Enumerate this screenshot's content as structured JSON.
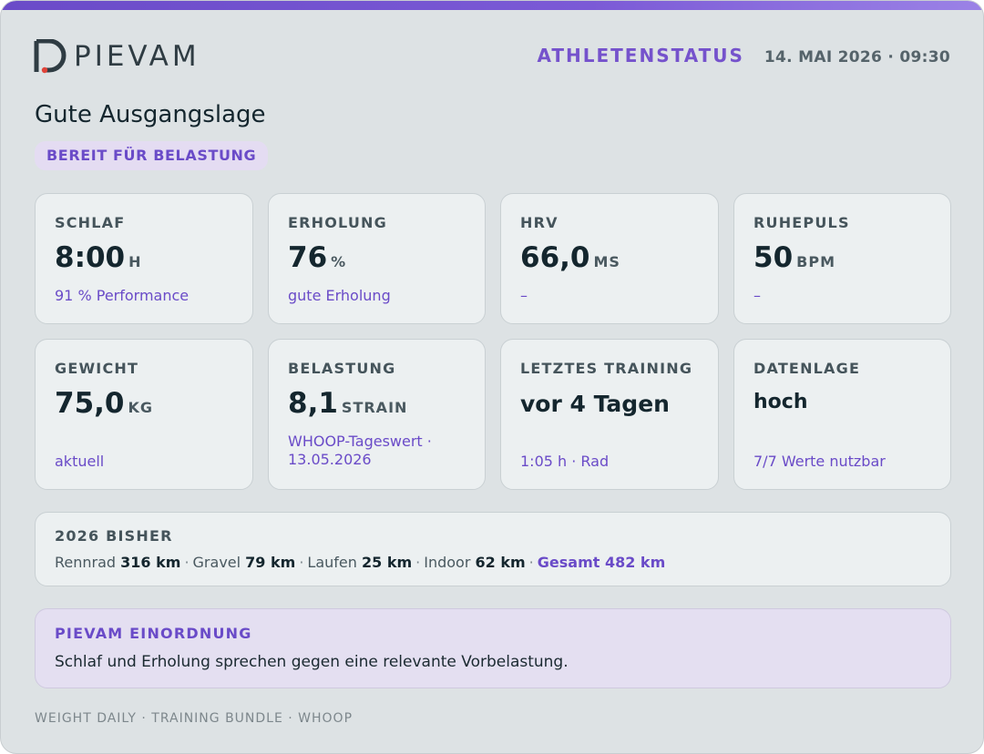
{
  "brand": {
    "logo_text": "PIEVAM",
    "accent": "#6a4bc8",
    "logo_dot_color": "#e0443a"
  },
  "header": {
    "status_label": "ATHLETENSTATUS",
    "datetime": "14. MAI 2026 · 09:30"
  },
  "summary": {
    "title": "Gute Ausgangslage",
    "badge": "BEREIT FÜR BELASTUNG"
  },
  "metrics": [
    {
      "label": "SCHLAF",
      "value": "8:00",
      "unit": "H",
      "sub": "91 % Performance"
    },
    {
      "label": "ERHOLUNG",
      "value": "76",
      "unit": "%",
      "sub": "gute Erholung"
    },
    {
      "label": "HRV",
      "value": "66,0",
      "unit": "MS",
      "sub": "–"
    },
    {
      "label": "RUHEPULS",
      "value": "50",
      "unit": "BPM",
      "sub": "–"
    },
    {
      "label": "GEWICHT",
      "value": "75,0",
      "unit": "KG",
      "sub": "aktuell"
    },
    {
      "label": "BELASTUNG",
      "value": "8,1",
      "unit": "STRAIN",
      "sub": "WHOOP-Tageswert · 13.05.2026"
    },
    {
      "label": "LETZTES TRAINING",
      "value": "vor 4 Tagen",
      "unit": "",
      "sub": "1:05 h · Rad"
    },
    {
      "label": "DATENLAGE",
      "value": "hoch",
      "unit": "",
      "sub": "7/7 Werte nutzbar"
    }
  ],
  "year_to_date": {
    "label": "2026 BISHER",
    "items": [
      {
        "name": "Rennrad",
        "value": "316 km"
      },
      {
        "name": "Gravel",
        "value": "79 km"
      },
      {
        "name": "Laufen",
        "value": "25 km"
      },
      {
        "name": "Indoor",
        "value": "62 km"
      }
    ],
    "separator": "·",
    "total": "Gesamt 482 km"
  },
  "assessment": {
    "label": "PIEVAM EINORDNUNG",
    "text": "Schlaf und Erholung sprechen gegen eine relevante Vorbelastung."
  },
  "footer": {
    "sources": "WEIGHT DAILY · TRAINING BUNDLE · WHOOP"
  }
}
